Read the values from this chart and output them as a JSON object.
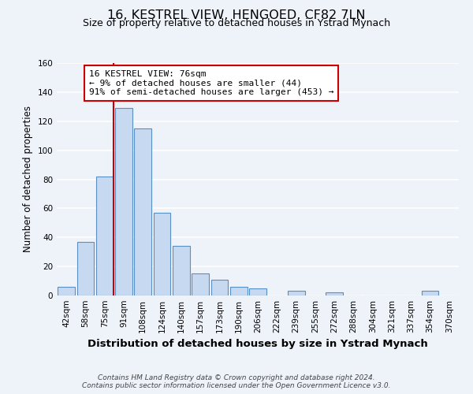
{
  "title": "16, KESTREL VIEW, HENGOED, CF82 7LN",
  "subtitle": "Size of property relative to detached houses in Ystrad Mynach",
  "xlabel": "Distribution of detached houses by size in Ystrad Mynach",
  "ylabel": "Number of detached properties",
  "bin_labels": [
    "42sqm",
    "58sqm",
    "75sqm",
    "91sqm",
    "108sqm",
    "124sqm",
    "140sqm",
    "157sqm",
    "173sqm",
    "190sqm",
    "206sqm",
    "222sqm",
    "239sqm",
    "255sqm",
    "272sqm",
    "288sqm",
    "304sqm",
    "321sqm",
    "337sqm",
    "354sqm",
    "370sqm"
  ],
  "bar_values": [
    6,
    37,
    82,
    129,
    115,
    57,
    34,
    15,
    11,
    6,
    5,
    0,
    3,
    0,
    2,
    0,
    0,
    0,
    0,
    3,
    0
  ],
  "bar_color": "#c6d9f0",
  "bar_edge_color": "#5a8fc3",
  "vline_x_index": 2,
  "vline_color": "#cc0000",
  "annotation_line1": "16 KESTREL VIEW: 76sqm",
  "annotation_line2": "← 9% of detached houses are smaller (44)",
  "annotation_line3": "91% of semi-detached houses are larger (453) →",
  "annotation_box_color": "#ffffff",
  "annotation_box_edge": "#cc0000",
  "ylim": [
    0,
    160
  ],
  "yticks": [
    0,
    20,
    40,
    60,
    80,
    100,
    120,
    140,
    160
  ],
  "footer_line1": "Contains HM Land Registry data © Crown copyright and database right 2024.",
  "footer_line2": "Contains public sector information licensed under the Open Government Licence v3.0.",
  "background_color": "#eef2f9",
  "grid_color": "#ffffff",
  "title_fontsize": 11.5,
  "subtitle_fontsize": 9,
  "xlabel_fontsize": 9.5,
  "ylabel_fontsize": 8.5,
  "tick_fontsize": 7.5,
  "annotation_fontsize": 8,
  "footer_fontsize": 6.5
}
